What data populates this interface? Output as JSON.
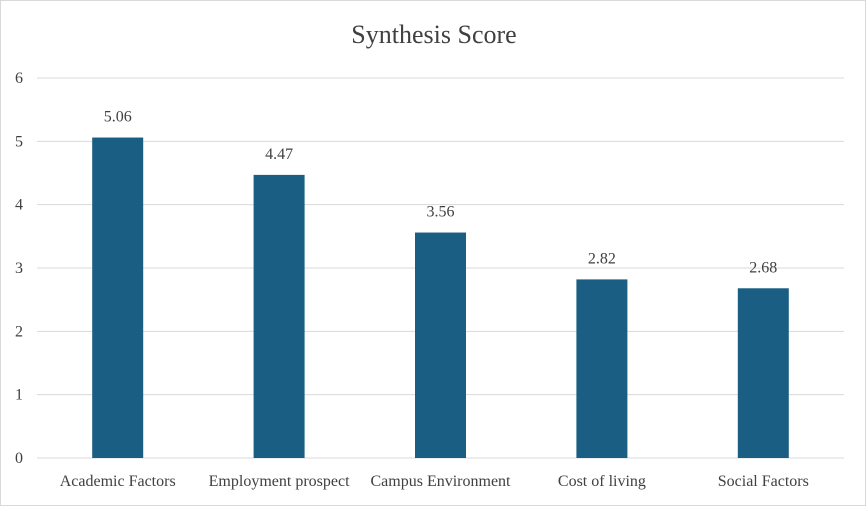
{
  "chart_data": {
    "type": "bar",
    "title": "Synthesis Score",
    "categories": [
      "Academic Factors",
      "Employment prospect",
      "Campus Environment",
      "Cost of living",
      "Social Factors"
    ],
    "values": [
      5.06,
      4.47,
      3.56,
      2.82,
      2.68
    ],
    "value_labels": [
      "5.06",
      "4.47",
      "3.56",
      "2.82",
      "2.68"
    ],
    "yticks": [
      0,
      1,
      2,
      3,
      4,
      5,
      6
    ],
    "ylim": [
      0,
      6
    ],
    "grid": true,
    "legend": "none",
    "bar_color": "#1a5f83"
  }
}
